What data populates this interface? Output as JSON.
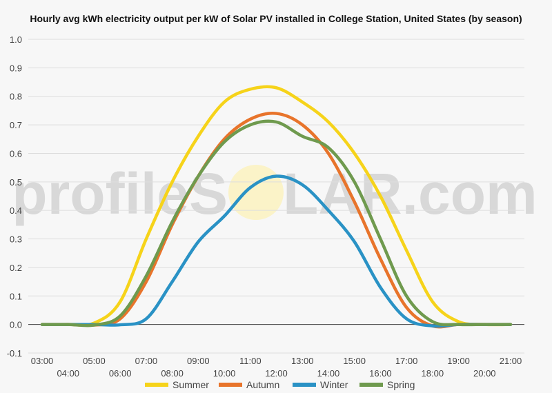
{
  "chart_data": {
    "type": "line",
    "title": "Hourly avg kWh electricity output per kW of Solar PV installed in College Station, United States (by season)",
    "xlabel": "",
    "ylabel": "",
    "ylim": [
      -0.1,
      1.0
    ],
    "yticks": [
      "-0.1",
      "0.0",
      "0.1",
      "0.2",
      "0.3",
      "0.4",
      "0.5",
      "0.6",
      "0.7",
      "0.8",
      "0.9",
      "1.0"
    ],
    "x": [
      "03:00",
      "04:00",
      "05:00",
      "06:00",
      "07:00",
      "08:00",
      "09:00",
      "10:00",
      "11:00",
      "12:00",
      "13:00",
      "14:00",
      "15:00",
      "16:00",
      "17:00",
      "18:00",
      "19:00",
      "20:00",
      "21:00"
    ],
    "grid": true,
    "legend_position": "bottom",
    "series": [
      {
        "name": "Summer",
        "color": "#f6d31a",
        "values": [
          0.0,
          0.0,
          0.005,
          0.08,
          0.3,
          0.5,
          0.66,
          0.78,
          0.825,
          0.83,
          0.78,
          0.71,
          0.6,
          0.45,
          0.26,
          0.08,
          0.01,
          0.0,
          0.0
        ]
      },
      {
        "name": "Autumn",
        "color": "#e8742b",
        "values": [
          0.0,
          0.0,
          -0.002,
          0.02,
          0.15,
          0.35,
          0.52,
          0.65,
          0.72,
          0.74,
          0.7,
          0.6,
          0.43,
          0.23,
          0.06,
          -0.005,
          0.0,
          0.0,
          0.0
        ]
      },
      {
        "name": "Winter",
        "color": "#2a92c5",
        "values": [
          0.0,
          0.0,
          0.0,
          -0.001,
          0.02,
          0.15,
          0.29,
          0.38,
          0.48,
          0.52,
          0.49,
          0.4,
          0.29,
          0.13,
          0.02,
          -0.005,
          0.0,
          0.0,
          0.0
        ]
      },
      {
        "name": "Spring",
        "color": "#6f9a4e",
        "values": [
          0.0,
          0.0,
          -0.002,
          0.03,
          0.17,
          0.36,
          0.52,
          0.64,
          0.7,
          0.71,
          0.66,
          0.62,
          0.5,
          0.3,
          0.1,
          0.01,
          0.0,
          0.0,
          0.0
        ]
      }
    ]
  },
  "watermark": {
    "text_left": "profileS",
    "text_right": "LAR.com"
  }
}
